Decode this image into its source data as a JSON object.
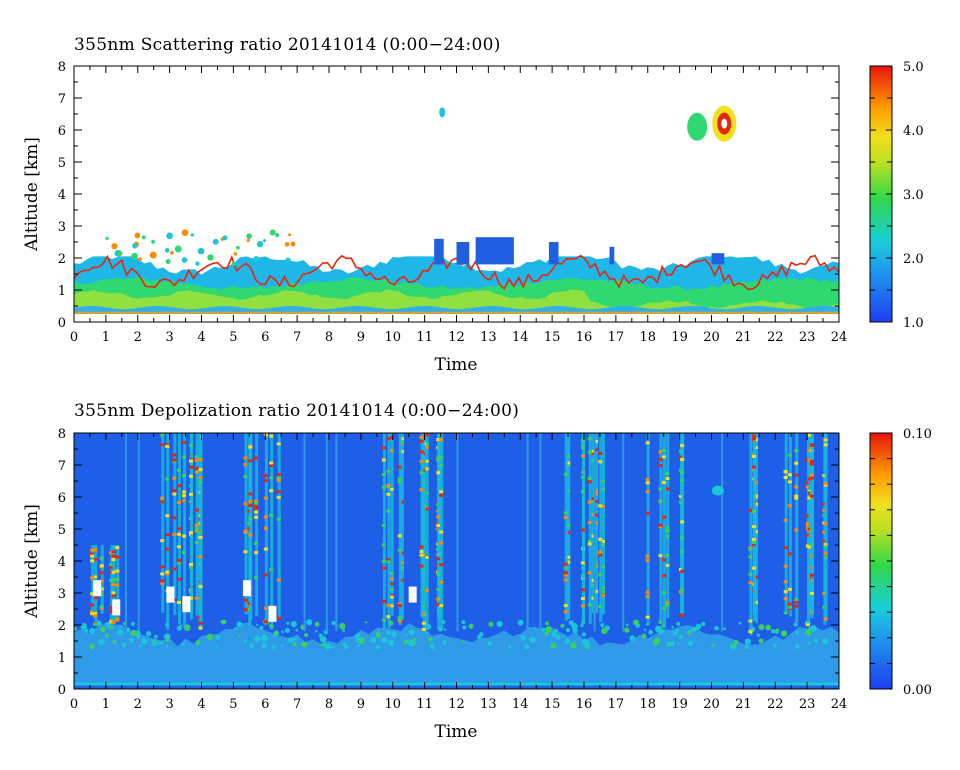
{
  "chart_data": [
    {
      "type": "heatmap",
      "title": "355nm Scattering ratio  20141014 (0:00−24:00)",
      "xlabel": "Time",
      "ylabel": "Altitude [km]",
      "xlim": [
        0,
        24
      ],
      "ylim": [
        0,
        8
      ],
      "x_ticks": [
        "0",
        "1",
        "2",
        "3",
        "4",
        "5",
        "6",
        "7",
        "8",
        "9",
        "10",
        "11",
        "12",
        "13",
        "14",
        "15",
        "16",
        "17",
        "18",
        "19",
        "20",
        "21",
        "22",
        "23",
        "24"
      ],
      "y_ticks": [
        "0",
        "1",
        "2",
        "3",
        "4",
        "5",
        "6",
        "7",
        "8"
      ],
      "colorbar": {
        "range": [
          1.0,
          5.0
        ],
        "tick_labels": [
          "1.0",
          "2.0",
          "3.0",
          "4.0",
          "5.0"
        ],
        "colormap": "blue-cyan-green-yellow-red"
      },
      "features": [
        {
          "label": "boundary layer",
          "time": [
            0,
            24
          ],
          "altitude_km": [
            0.3,
            2.0
          ],
          "value": "1.5-5.0"
        },
        {
          "label": "cloud",
          "time": [
            11.4,
            11.6
          ],
          "altitude_km": [
            6.4,
            6.7
          ],
          "value": "2.0"
        },
        {
          "label": "cloud",
          "time": [
            19.2,
            20.9
          ],
          "altitude_km": [
            5.4,
            7.1
          ],
          "value": "2.0-5.0"
        }
      ]
    },
    {
      "type": "heatmap",
      "title": "355nm Depolization ratio  20141014 (0:00−24:00)",
      "xlabel": "Time",
      "ylabel": "Altitude [km]",
      "xlim": [
        0,
        24
      ],
      "ylim": [
        0,
        8
      ],
      "x_ticks": [
        "0",
        "1",
        "2",
        "3",
        "4",
        "5",
        "6",
        "7",
        "8",
        "9",
        "10",
        "11",
        "12",
        "13",
        "14",
        "15",
        "16",
        "17",
        "18",
        "19",
        "20",
        "21",
        "22",
        "23",
        "24"
      ],
      "y_ticks": [
        "0",
        "1",
        "2",
        "3",
        "4",
        "5",
        "6",
        "7",
        "8"
      ],
      "colorbar": {
        "range": [
          0.0,
          0.1
        ],
        "tick_labels": [
          "0.00",
          "0.10"
        ],
        "colormap": "blue-cyan-green-yellow-red"
      },
      "features": [
        {
          "label": "boundary layer",
          "time": [
            0,
            24
          ],
          "altitude_km": [
            0,
            2.0
          ],
          "value": "0.02-0.04"
        },
        {
          "label": "high depolization",
          "time": [
            0.2,
            1.4
          ],
          "altitude_km": [
            2.0,
            4.5
          ],
          "value": "0.08-0.10"
        },
        {
          "label": "high depolization",
          "time": [
            2.2,
            4.2
          ],
          "altitude_km": [
            1.5,
            8.0
          ],
          "value": "0.08-0.10"
        },
        {
          "label": "high depolization",
          "time": [
            5.0,
            6.4
          ],
          "altitude_km": [
            1.5,
            8.0
          ],
          "value": "0.08-0.10"
        },
        {
          "label": "high depolization",
          "time": [
            8.8,
            11.5
          ],
          "altitude_km": [
            2.0,
            8.0
          ],
          "value": "0.08-0.10"
        },
        {
          "label": "high depolization",
          "time": [
            15.1,
            16.8
          ],
          "altitude_km": [
            2.0,
            8.0
          ],
          "value": "0.08-0.10"
        },
        {
          "label": "high depolization",
          "time": [
            17.9,
            19.1
          ],
          "altitude_km": [
            2.0,
            8.0
          ],
          "value": "0.08-0.10"
        },
        {
          "label": "high depolization",
          "time": [
            21.0,
            23.8
          ],
          "altitude_km": [
            2.0,
            8.0
          ],
          "value": "0.08-0.10"
        }
      ]
    }
  ],
  "colors": {
    "background": "#ffffff",
    "low": "#1f5fe8",
    "cyan": "#19c7d8",
    "green": "#3ad15a",
    "yellow": "#e8e21e",
    "orange": "#ff8a00",
    "red": "#e8260c"
  }
}
